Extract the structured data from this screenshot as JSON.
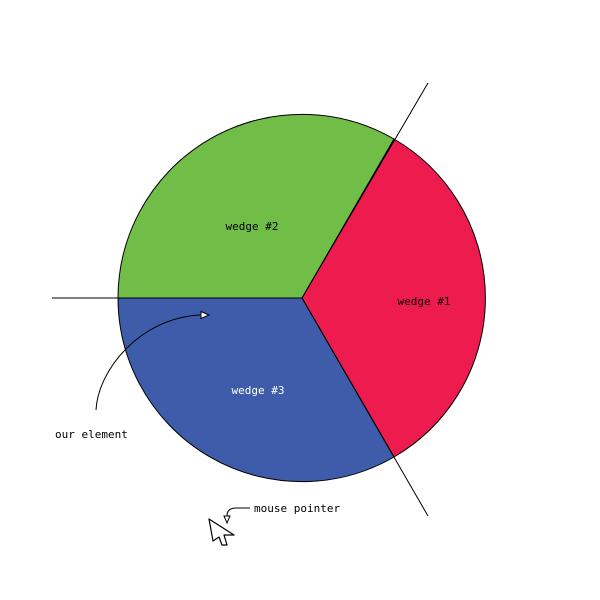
{
  "wedges": [
    {
      "label": "wedge #1",
      "color": "#ee1b4f",
      "text_color": "#000000"
    },
    {
      "label": "wedge #2",
      "color": "#70bd48",
      "text_color": "#000000"
    },
    {
      "label": "wedge #3",
      "color": "#3e5ca9",
      "text_color": "#ffffff"
    }
  ],
  "annotations": {
    "element_label": "our element",
    "pointer_label": "mouse pointer"
  },
  "colors": {
    "line": "#000000",
    "background": "#ffffff"
  }
}
